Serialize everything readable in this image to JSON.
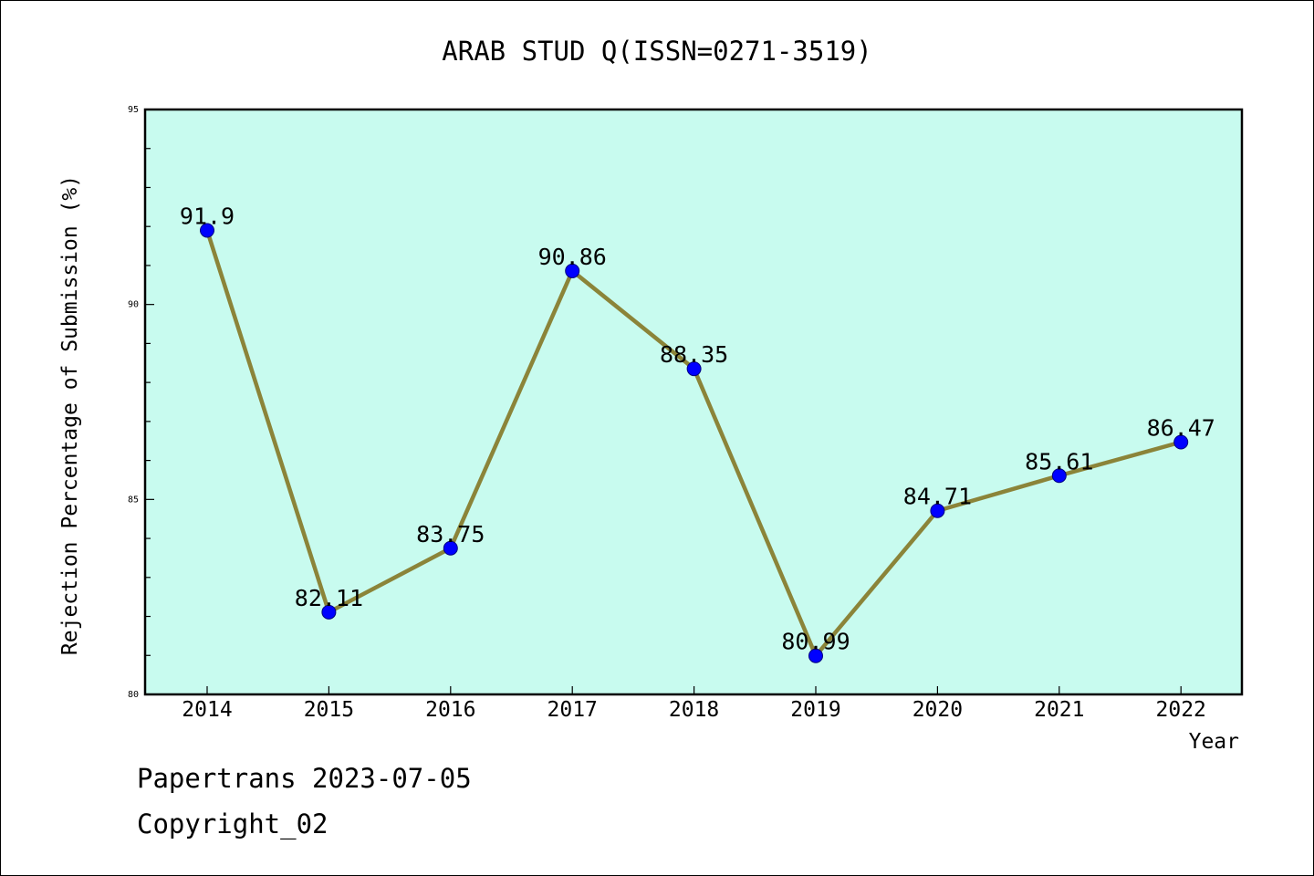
{
  "colors": {
    "plot_background": "#c8fbef",
    "line": "#8b8439",
    "marker": "#0000ff",
    "marker_edge": "#000080",
    "text": "#000000"
  },
  "chart_data": {
    "type": "line",
    "title": "ARAB STUD Q(ISSN=0271-3519)",
    "xlabel": "Year",
    "ylabel": "Rejection Percentage of Submission (%)",
    "categories": [
      "2014",
      "2015",
      "2016",
      "2017",
      "2018",
      "2019",
      "2020",
      "2021",
      "2022"
    ],
    "values": [
      91.9,
      82.11,
      83.75,
      90.86,
      88.35,
      80.99,
      84.71,
      85.61,
      86.47
    ],
    "data_labels": [
      "91.9",
      "82.11",
      "83.75",
      "90.86",
      "88.35",
      "80.99",
      "84.71",
      "85.61",
      "86.47"
    ],
    "ylim": [
      80,
      95
    ],
    "y_ticks": [
      "80",
      "85",
      "90",
      "95"
    ],
    "y_minor_step": 1,
    "grid": false,
    "legend": "none"
  },
  "footer": {
    "line1": "Papertrans 2023-07-05",
    "line2": "Copyright_02"
  }
}
